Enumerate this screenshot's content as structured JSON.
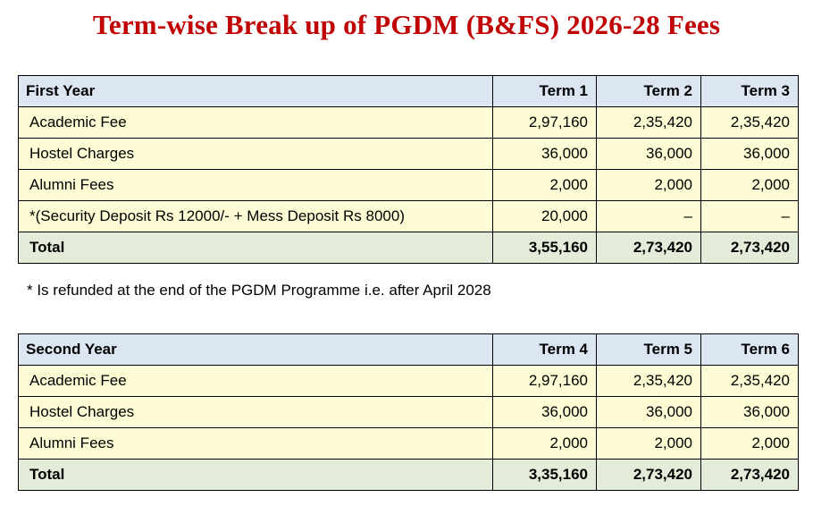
{
  "title": "Term-wise Break up of PGDM (B&FS) 2026-28 Fees",
  "first_year": {
    "header": [
      "First Year",
      "Term 1",
      "Term 2",
      "Term 3"
    ],
    "rows": [
      [
        "Academic Fee",
        "2,97,160",
        "2,35,420",
        "2,35,420"
      ],
      [
        "Hostel Charges",
        "36,000",
        "36,000",
        "36,000"
      ],
      [
        "Alumni Fees",
        "2,000",
        "2,000",
        "2,000"
      ],
      [
        "*(Security Deposit Rs 12000/- + Mess Deposit Rs 8000)",
        "20,000",
        "–",
        "–"
      ]
    ],
    "total": [
      "Total",
      "3,55,160",
      "2,73,420",
      "2,73,420"
    ]
  },
  "footnote": "* Is refunded at the end of the PGDM Programme i.e. after April 2028",
  "second_year": {
    "header": [
      "Second Year",
      "Term 4",
      "Term 5",
      "Term 6"
    ],
    "rows": [
      [
        "Academic Fee",
        "2,97,160",
        "2,35,420",
        "2,35,420"
      ],
      [
        "Hostel Charges",
        "36,000",
        "36,000",
        "36,000"
      ],
      [
        "Alumni Fees",
        "2,000",
        "2,000",
        "2,000"
      ]
    ],
    "total": [
      "Total",
      "3,35,160",
      "2,73,420",
      "2,73,420"
    ]
  },
  "colors": {
    "title": "#c00000",
    "header_bg": "#dce6f2",
    "row_bg": "#fdfcd4",
    "total_bg": "#e2ecd8"
  }
}
